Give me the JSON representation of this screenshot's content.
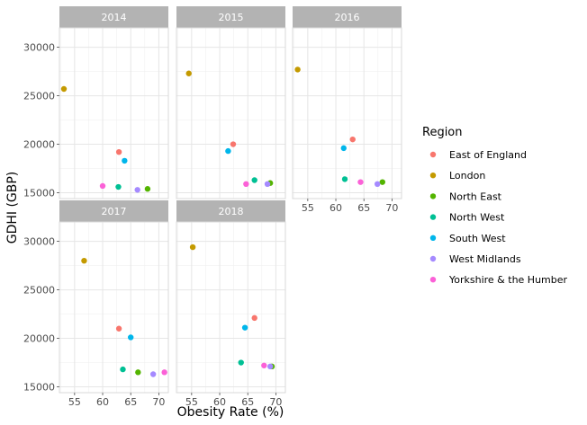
{
  "chart_data": {
    "type": "scatter",
    "xlabel": "Obesity Rate (%)",
    "ylabel": "GDHI (GBP)",
    "xlim": [
      52.3,
      71.7
    ],
    "ylim": [
      14400,
      32000
    ],
    "x_ticks": [
      55,
      60,
      65,
      70
    ],
    "y_ticks": [
      15000,
      20000,
      25000,
      30000
    ],
    "grid": true,
    "legend": {
      "title": "Region",
      "position": "right",
      "entries": [
        {
          "name": "East of England",
          "color": "#F8766D"
        },
        {
          "name": "London",
          "color": "#C49A00"
        },
        {
          "name": "North East",
          "color": "#53B400"
        },
        {
          "name": "North West",
          "color": "#00C094"
        },
        {
          "name": "South West",
          "color": "#00B6EB"
        },
        {
          "name": "West Midlands",
          "color": "#A58AFF"
        },
        {
          "name": "Yorkshire & the Humber",
          "color": "#FB61D7"
        }
      ]
    },
    "facets": [
      {
        "label": "2014",
        "points": [
          {
            "region": "East of England",
            "x": 62.9,
            "y": 19200
          },
          {
            "region": "London",
            "x": 53.1,
            "y": 25700
          },
          {
            "region": "North East",
            "x": 68.0,
            "y": 15400
          },
          {
            "region": "North West",
            "x": 62.8,
            "y": 15600
          },
          {
            "region": "South West",
            "x": 63.9,
            "y": 18300
          },
          {
            "region": "West Midlands",
            "x": 66.2,
            "y": 15300
          },
          {
            "region": "Yorkshire & the Humber",
            "x": 60.0,
            "y": 15700
          }
        ]
      },
      {
        "label": "2015",
        "points": [
          {
            "region": "East of England",
            "x": 62.4,
            "y": 20000
          },
          {
            "region": "London",
            "x": 54.5,
            "y": 27300
          },
          {
            "region": "North East",
            "x": 69.0,
            "y": 16000
          },
          {
            "region": "North West",
            "x": 66.2,
            "y": 16300
          },
          {
            "region": "South West",
            "x": 61.5,
            "y": 19300
          },
          {
            "region": "West Midlands",
            "x": 68.5,
            "y": 15900
          },
          {
            "region": "Yorkshire & the Humber",
            "x": 64.7,
            "y": 15900
          }
        ]
      },
      {
        "label": "2016",
        "points": [
          {
            "region": "East of England",
            "x": 63.0,
            "y": 20500
          },
          {
            "region": "London",
            "x": 53.2,
            "y": 27700
          },
          {
            "region": "North East",
            "x": 68.3,
            "y": 16100
          },
          {
            "region": "North West",
            "x": 61.6,
            "y": 16400
          },
          {
            "region": "South West",
            "x": 61.4,
            "y": 19600
          },
          {
            "region": "West Midlands",
            "x": 67.4,
            "y": 15900
          },
          {
            "region": "Yorkshire & the Humber",
            "x": 64.4,
            "y": 16100
          }
        ]
      },
      {
        "label": "2017",
        "points": [
          {
            "region": "East of England",
            "x": 62.9,
            "y": 21000
          },
          {
            "region": "London",
            "x": 56.7,
            "y": 28000
          },
          {
            "region": "North East",
            "x": 66.3,
            "y": 16500
          },
          {
            "region": "North West",
            "x": 63.6,
            "y": 16800
          },
          {
            "region": "South West",
            "x": 65.0,
            "y": 20100
          },
          {
            "region": "West Midlands",
            "x": 69.0,
            "y": 16300
          },
          {
            "region": "Yorkshire & the Humber",
            "x": 71.0,
            "y": 16500
          }
        ]
      },
      {
        "label": "2018",
        "points": [
          {
            "region": "East of England",
            "x": 66.2,
            "y": 22100
          },
          {
            "region": "London",
            "x": 55.2,
            "y": 29400
          },
          {
            "region": "North East",
            "x": 69.3,
            "y": 17100
          },
          {
            "region": "North West",
            "x": 63.8,
            "y": 17500
          },
          {
            "region": "South West",
            "x": 64.5,
            "y": 21100
          },
          {
            "region": "West Midlands",
            "x": 69.0,
            "y": 17100
          },
          {
            "region": "Yorkshire & the Humber",
            "x": 67.9,
            "y": 17200
          }
        ]
      }
    ]
  }
}
